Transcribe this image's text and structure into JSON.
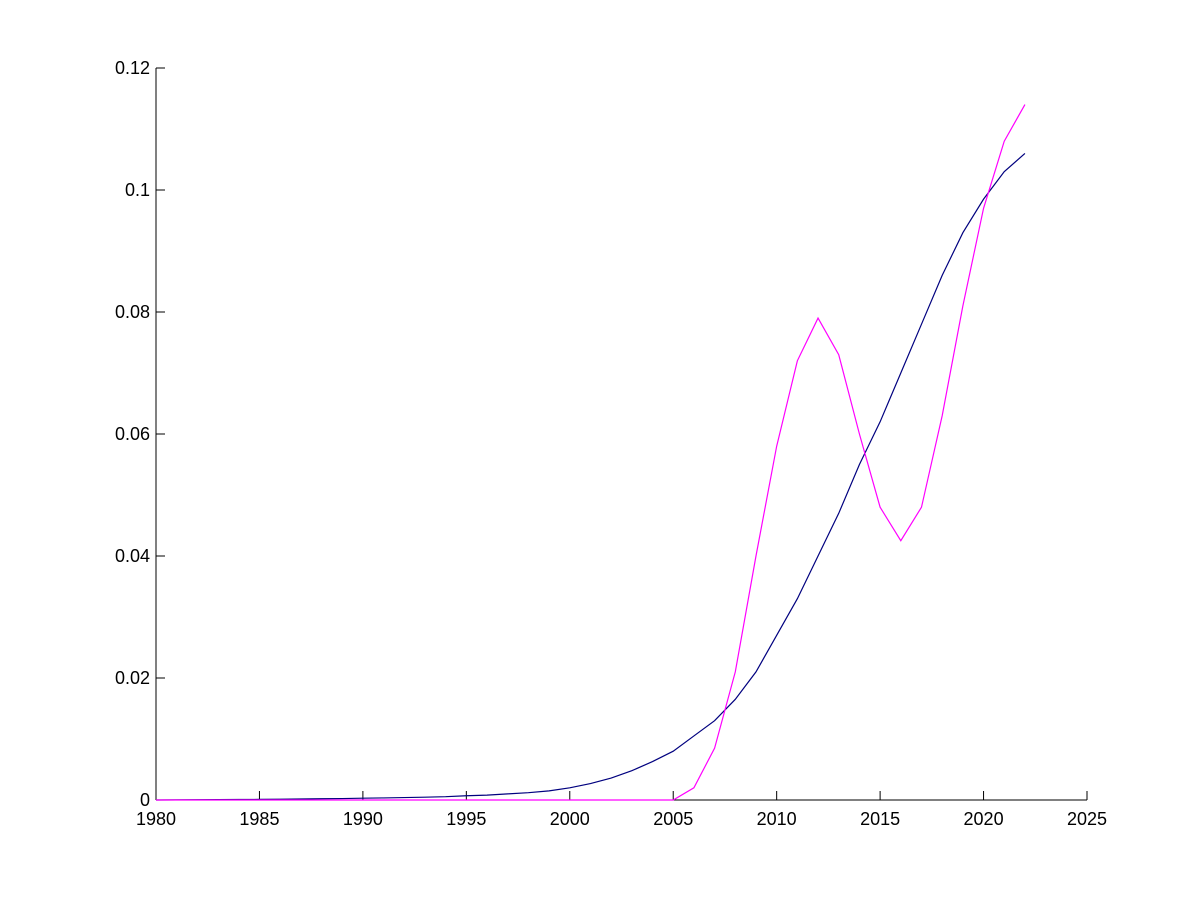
{
  "chart_data": {
    "type": "line",
    "x": [
      1980,
      1981,
      1982,
      1983,
      1984,
      1985,
      1986,
      1987,
      1988,
      1989,
      1990,
      1991,
      1992,
      1993,
      1994,
      1995,
      1996,
      1997,
      1998,
      1999,
      2000,
      2001,
      2002,
      2003,
      2004,
      2005,
      2006,
      2007,
      2008,
      2009,
      2010,
      2011,
      2012,
      2013,
      2014,
      2015,
      2016,
      2017,
      2018,
      2019,
      2020,
      2021,
      2022
    ],
    "series": [
      {
        "color": "#00007f",
        "values": [
          0,
          2e-05,
          4e-05,
          6e-05,
          8e-05,
          0.0001,
          0.00013,
          0.00016,
          0.0002,
          0.00024,
          0.0003,
          0.00034,
          0.0004,
          0.00046,
          0.00054,
          0.0007,
          0.0008,
          0.001,
          0.0012,
          0.0015,
          0.002,
          0.0027,
          0.0036,
          0.0048,
          0.0063,
          0.008,
          0.0105,
          0.013,
          0.0165,
          0.021,
          0.027,
          0.033,
          0.04,
          0.047,
          0.055,
          0.062,
          0.07,
          0.078,
          0.086,
          0.093,
          0.0985,
          0.103,
          0.106
        ]
      },
      {
        "color": "#ff00ff",
        "values": [
          0,
          0,
          0,
          0,
          0,
          0,
          0,
          0,
          0,
          0,
          0,
          0,
          0,
          0,
          0,
          0,
          0,
          0,
          0,
          0,
          0,
          0,
          0,
          0,
          0,
          0,
          0.002,
          0.0085,
          0.021,
          0.04,
          0.058,
          0.072,
          0.079,
          0.073,
          0.06,
          0.048,
          0.0425,
          0.048,
          0.063,
          0.081,
          0.097,
          0.108,
          0.114
        ]
      }
    ],
    "xlim": [
      1980,
      2025
    ],
    "xticks": [
      1980,
      1985,
      1990,
      1995,
      2000,
      2005,
      2010,
      2015,
      2020,
      2025
    ],
    "ylim": [
      0,
      0.12
    ],
    "yticks": [
      0,
      0.02,
      0.04,
      0.06,
      0.08,
      0.1,
      0.12
    ]
  }
}
